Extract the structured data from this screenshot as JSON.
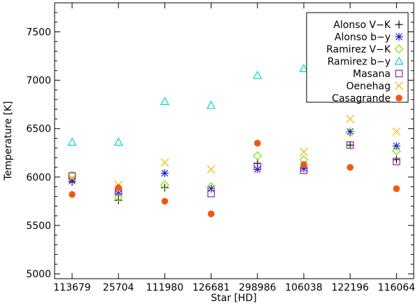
{
  "chart_data": {
    "type": "scatter",
    "xlabel": "Star [HD]",
    "ylabel": "Temperature [K]",
    "categories": [
      "113679",
      "25704",
      "111980",
      "126681",
      "298986",
      "106038",
      "122196",
      "116064"
    ],
    "ylim": [
      4950,
      7800
    ],
    "yticks": [
      5000,
      5500,
      6000,
      6500,
      7000,
      7500
    ],
    "grid": false,
    "legend_position": "top-right",
    "series": [
      {
        "name": "Alonso V−K",
        "marker": "plus",
        "color": "#000000",
        "values": [
          5950,
          5760,
          5890,
          5880,
          6140,
          6090,
          6330,
          6180
        ]
      },
      {
        "name": "Alonso b−y",
        "marker": "asterisk",
        "color": "#1a1adc",
        "values": [
          5960,
          5830,
          6040,
          5880,
          6080,
          6090,
          6470,
          6320
        ]
      },
      {
        "name": "Ramirez V−K",
        "marker": "diamond",
        "color": "#7fe000",
        "values": [
          6020,
          5790,
          5920,
          5900,
          6220,
          6180,
          6460,
          6270
        ]
      },
      {
        "name": "Ramirez b−y",
        "marker": "triangle",
        "color": "#00d8c0",
        "values": [
          6360,
          6360,
          6780,
          6740,
          7050,
          7120,
          null,
          null
        ]
      },
      {
        "name": "Masana",
        "marker": "square",
        "color": "#8a2a9a",
        "values": [
          6010,
          5850,
          null,
          5830,
          6110,
          6070,
          6330,
          6160
        ]
      },
      {
        "name": "Oenehag",
        "marker": "x",
        "color": "#f0b800",
        "values": [
          5990,
          5920,
          6150,
          6080,
          null,
          6260,
          6600,
          6470
        ]
      },
      {
        "name": "Casagrande",
        "marker": "dot",
        "color": "#f05a10",
        "values": [
          5820,
          5890,
          5750,
          5620,
          6350,
          6130,
          6100,
          5880
        ]
      }
    ]
  }
}
